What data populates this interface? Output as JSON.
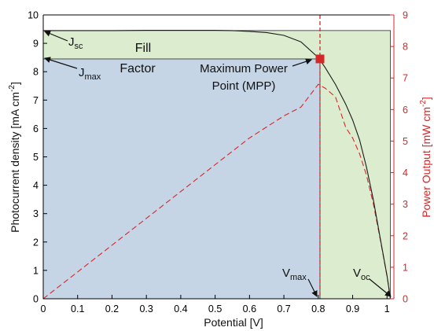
{
  "chart_data": {
    "type": "line",
    "title": "",
    "xlabel": "Potential [V]",
    "ylabel_left": "Photocurrent density [mA cm",
    "ylabel_left_sup": "-2",
    "ylabel_left_end": "]",
    "ylabel_right": "Power Output [mW cm",
    "ylabel_right_sup": "-2",
    "ylabel_right_end": "]",
    "xlim": [
      0,
      1.02
    ],
    "ylim_left": [
      0,
      10
    ],
    "ylim_right": [
      0,
      9
    ],
    "x_ticks": [
      "0",
      "0.1",
      "0.2",
      "0.3",
      "0.4",
      "0.5",
      "0.6",
      "0.7",
      "0.8",
      "0.9",
      "1"
    ],
    "y_left_ticks": [
      "0",
      "1",
      "2",
      "3",
      "4",
      "5",
      "6",
      "7",
      "8",
      "9",
      "10"
    ],
    "y_right_ticks": [
      "0",
      "1",
      "2",
      "3",
      "4",
      "5",
      "6",
      "7",
      "8",
      "9"
    ],
    "colors": {
      "current": "#1a1a1a",
      "power": "#d62728",
      "fill_factor_region": "#c5d5e6",
      "ideal_region": "#dceccf"
    },
    "series": [
      {
        "axis": "left",
        "style": "solid",
        "color": "#1a1a1a",
        "x": [
          0,
          0.1,
          0.2,
          0.3,
          0.4,
          0.5,
          0.55,
          0.6,
          0.65,
          0.7,
          0.75,
          0.8,
          0.82,
          0.85,
          0.88,
          0.9,
          0.92,
          0.94,
          0.96,
          0.98,
          1.0,
          1.01
        ],
        "y": [
          9.45,
          9.45,
          9.45,
          9.46,
          9.46,
          9.46,
          9.45,
          9.42,
          9.38,
          9.28,
          9.05,
          8.5,
          8.15,
          7.55,
          6.85,
          6.3,
          5.6,
          4.65,
          3.5,
          2.15,
          0.8,
          0
        ]
      },
      {
        "axis": "right",
        "style": "dashed",
        "color": "#d62728",
        "x": [
          0,
          0.1,
          0.2,
          0.3,
          0.4,
          0.5,
          0.6,
          0.7,
          0.75,
          0.8,
          0.82,
          0.85,
          0.88,
          0.9,
          0.92,
          0.94,
          0.96,
          0.98,
          1.0,
          1.01
        ],
        "y": [
          0,
          0.85,
          1.7,
          2.55,
          3.4,
          4.25,
          5.1,
          5.8,
          6.08,
          6.8,
          6.68,
          6.4,
          5.43,
          5.1,
          4.6,
          3.93,
          3.02,
          1.9,
          0.72,
          0
        ]
      }
    ],
    "mpp": {
      "x": 0.805,
      "y": 8.45
    },
    "jsc": 9.45,
    "jmax": 8.45,
    "vmax": 0.805,
    "voc": 1.01,
    "annotations": {
      "jsc_main": "J",
      "jsc_sub": "sc",
      "jmax_main": "J",
      "jmax_sub": "max",
      "fill_factor_1": "Fill",
      "fill_factor_2": "Factor",
      "mpp_1": "Maximum Power",
      "mpp_2": "Point (MPP)",
      "vmax_main": "V",
      "vmax_sub": "max",
      "voc_main": "V",
      "voc_sub": "oc"
    }
  }
}
